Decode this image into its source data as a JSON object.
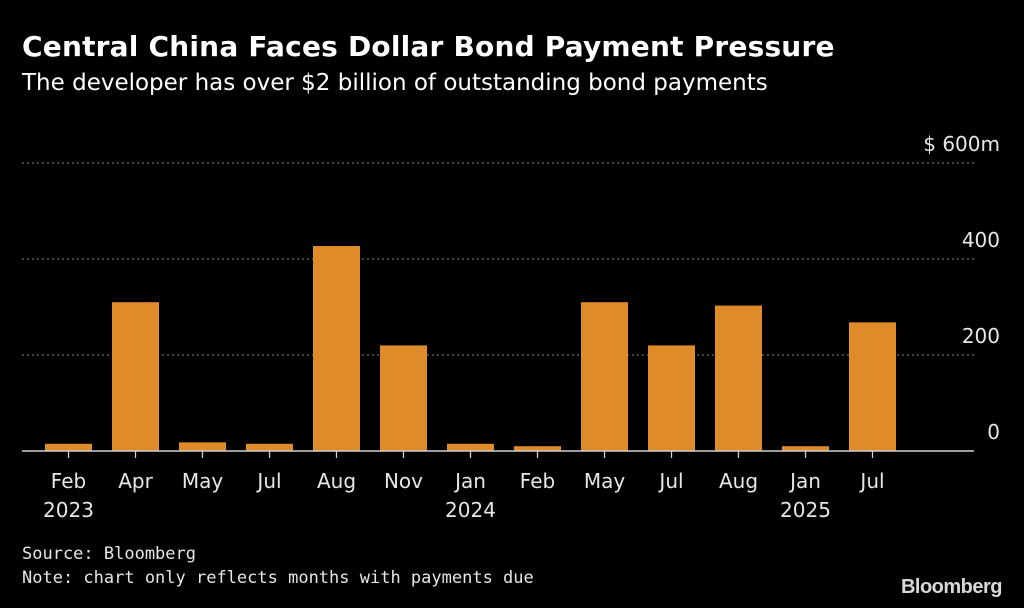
{
  "header": {
    "title": "Central China Faces Dollar Bond Payment Pressure",
    "subtitle": "The developer has over $2 billion of outstanding bond payments"
  },
  "footer": {
    "source": "Source: Bloomberg",
    "note": "Note: chart only reflects months with payments due",
    "brand": "Bloomberg"
  },
  "colors": {
    "bar": "#e08b2a",
    "grid": "#6e6e6e",
    "axis": "#cfcfcf",
    "background": "#000000"
  },
  "chart_data": {
    "type": "bar",
    "categories": [
      "Feb",
      "Apr",
      "May",
      "Jul",
      "Aug",
      "Nov",
      "Jan",
      "Feb",
      "May",
      "Jul",
      "Aug",
      "Jan",
      "Jul"
    ],
    "year_labels": [
      "2023",
      "",
      "",
      "",
      "",
      "",
      "2024",
      "",
      "",
      "",
      "",
      "2025",
      ""
    ],
    "values": [
      15,
      310,
      18,
      15,
      427,
      220,
      15,
      10,
      310,
      220,
      303,
      10,
      268
    ],
    "unit": "$ m",
    "ylim": [
      0,
      600
    ],
    "yticks": [
      0,
      200,
      400,
      600
    ],
    "ytick_labels": [
      "0",
      "200",
      "400",
      "$ 600m"
    ],
    "grid": true,
    "legend": "none",
    "title": "Central China Faces Dollar Bond Payment Pressure",
    "subtitle": "The developer has over $2 billion of outstanding bond payments"
  }
}
